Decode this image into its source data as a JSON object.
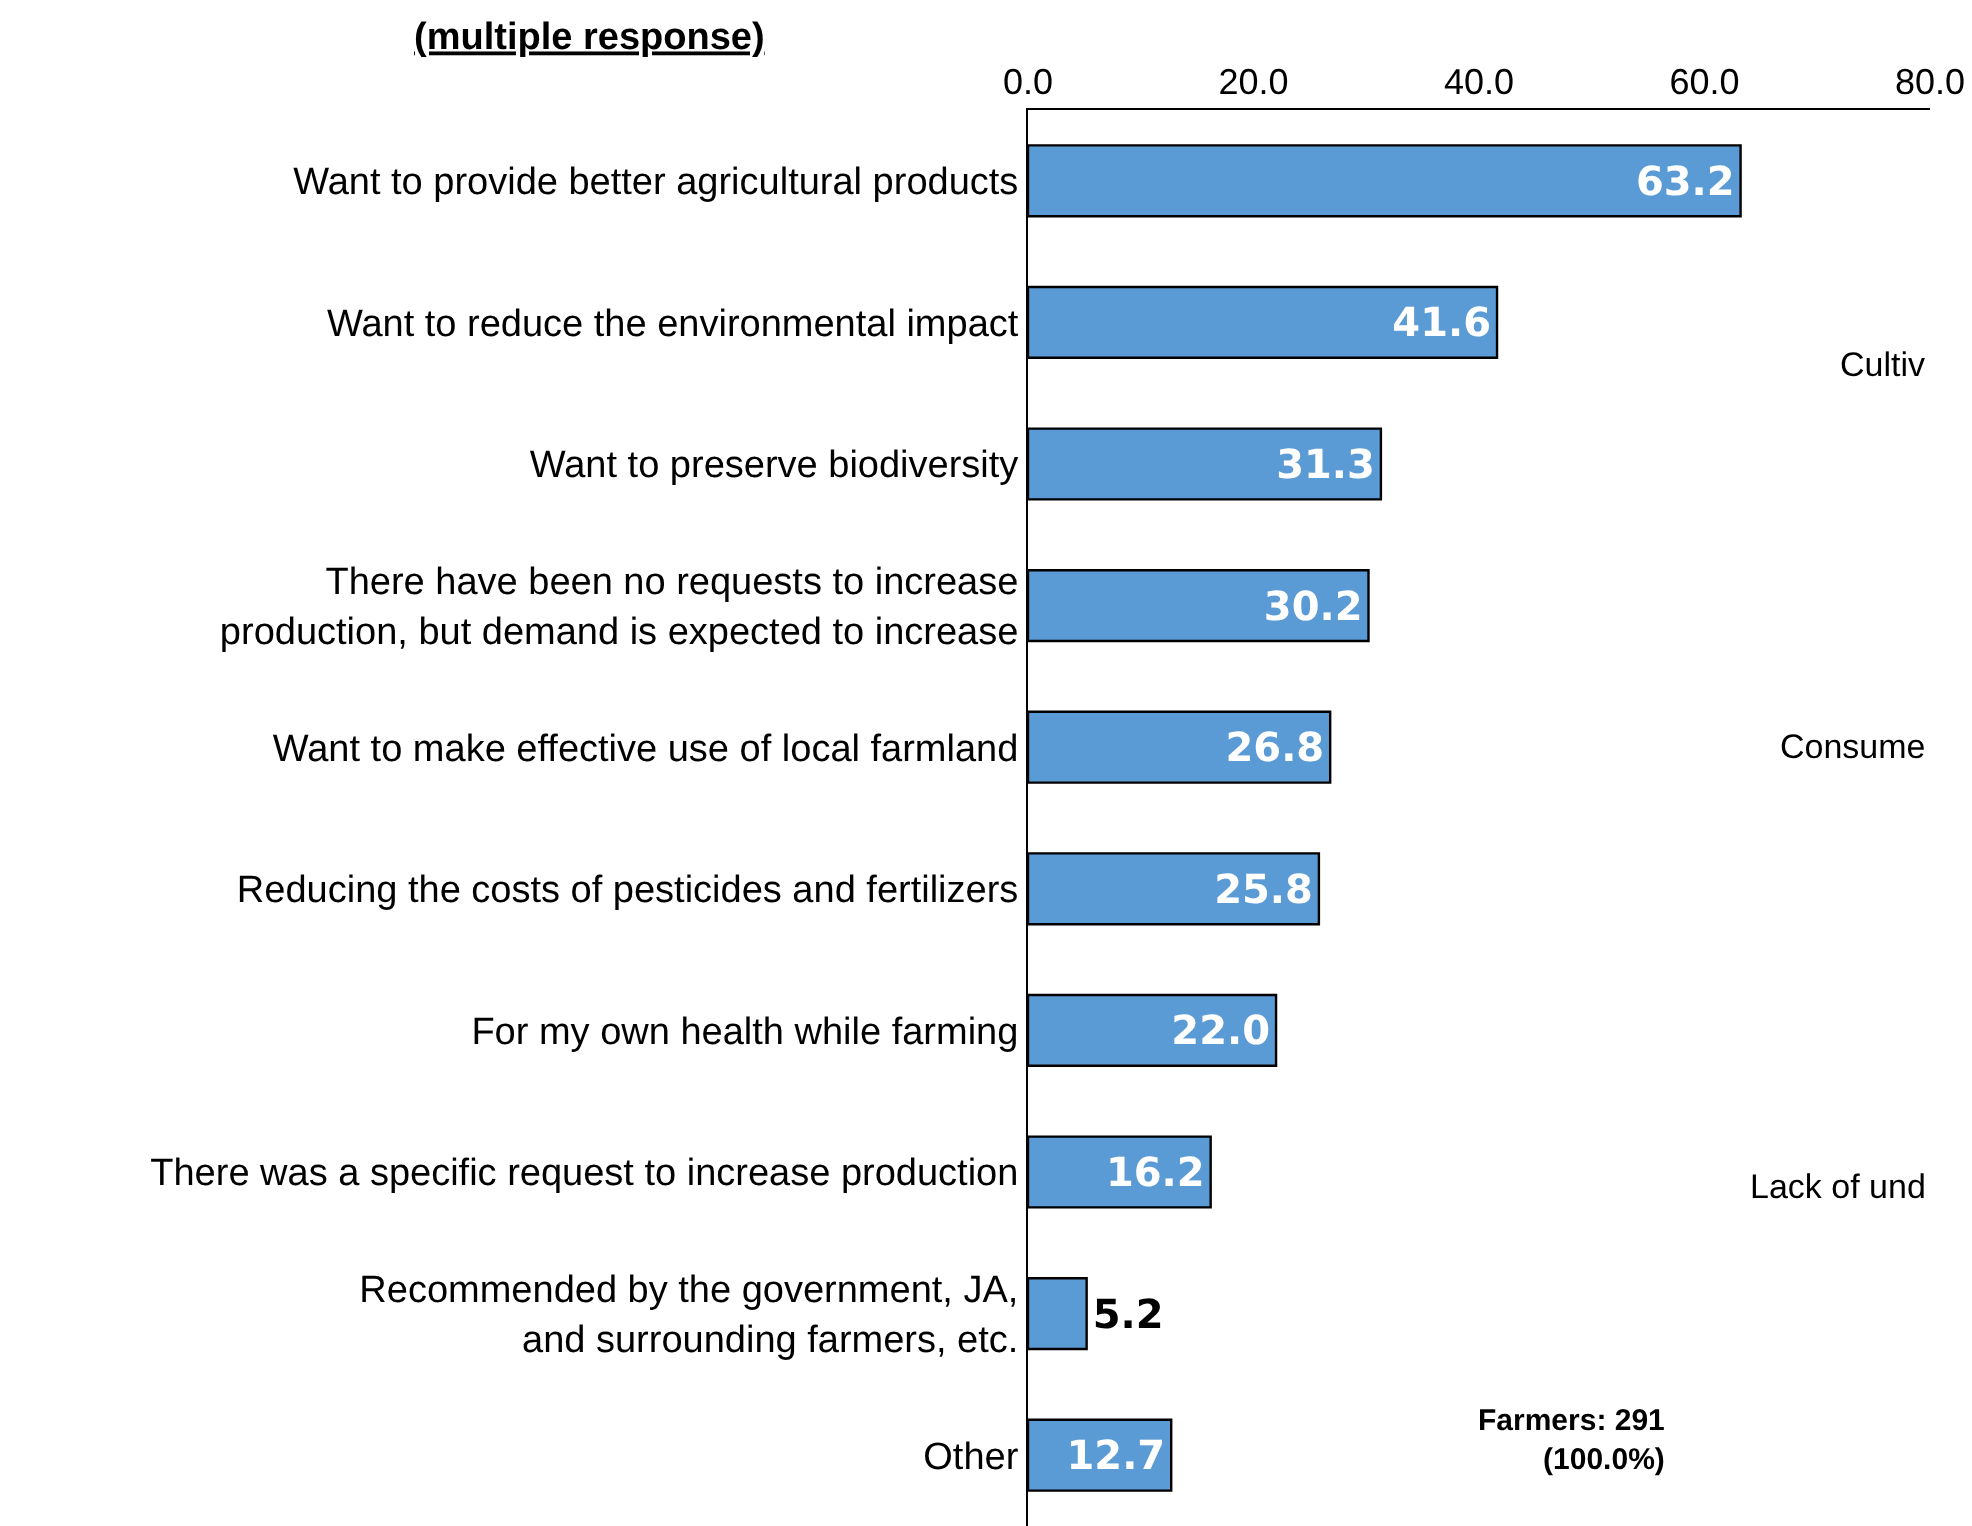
{
  "chart_data": {
    "type": "bar",
    "orientation": "horizontal",
    "title": "(multiple response)",
    "categories": [
      "Want to provide better agricultural products",
      "Want to reduce the environmental impact",
      "Want to preserve biodiversity",
      "There have been no requests to increase\nproduction, but demand is expected to increase",
      "Want to make effective use of local farmland",
      "Reducing the costs of pesticides and fertilizers",
      "For my own health while farming",
      "There was a specific request to increase production",
      "Recommended by the government, JA,\nand surrounding farmers, etc.",
      "Other"
    ],
    "values": [
      63.2,
      41.6,
      31.3,
      30.2,
      26.8,
      25.8,
      22.0,
      16.2,
      5.2,
      12.7
    ],
    "color": "#5b9bd5",
    "value_labels": [
      "63.2",
      "41.6",
      "31.3",
      "30.2",
      "26.8",
      "25.8",
      "22.0",
      "16.2",
      "5.2",
      "12.7"
    ],
    "xlim": [
      0,
      80
    ],
    "xticks": [
      {
        "value": 0,
        "label": "0.0"
      },
      {
        "value": 20,
        "label": "20.0"
      },
      {
        "value": 40,
        "label": "40.0"
      },
      {
        "value": 60,
        "label": "60.0"
      },
      {
        "value": 80,
        "label": "80.0"
      }
    ],
    "annotations": [
      "Farmers: 291\n(100.0%)",
      "Cultiv",
      "Consume",
      "Lack of und"
    ]
  }
}
